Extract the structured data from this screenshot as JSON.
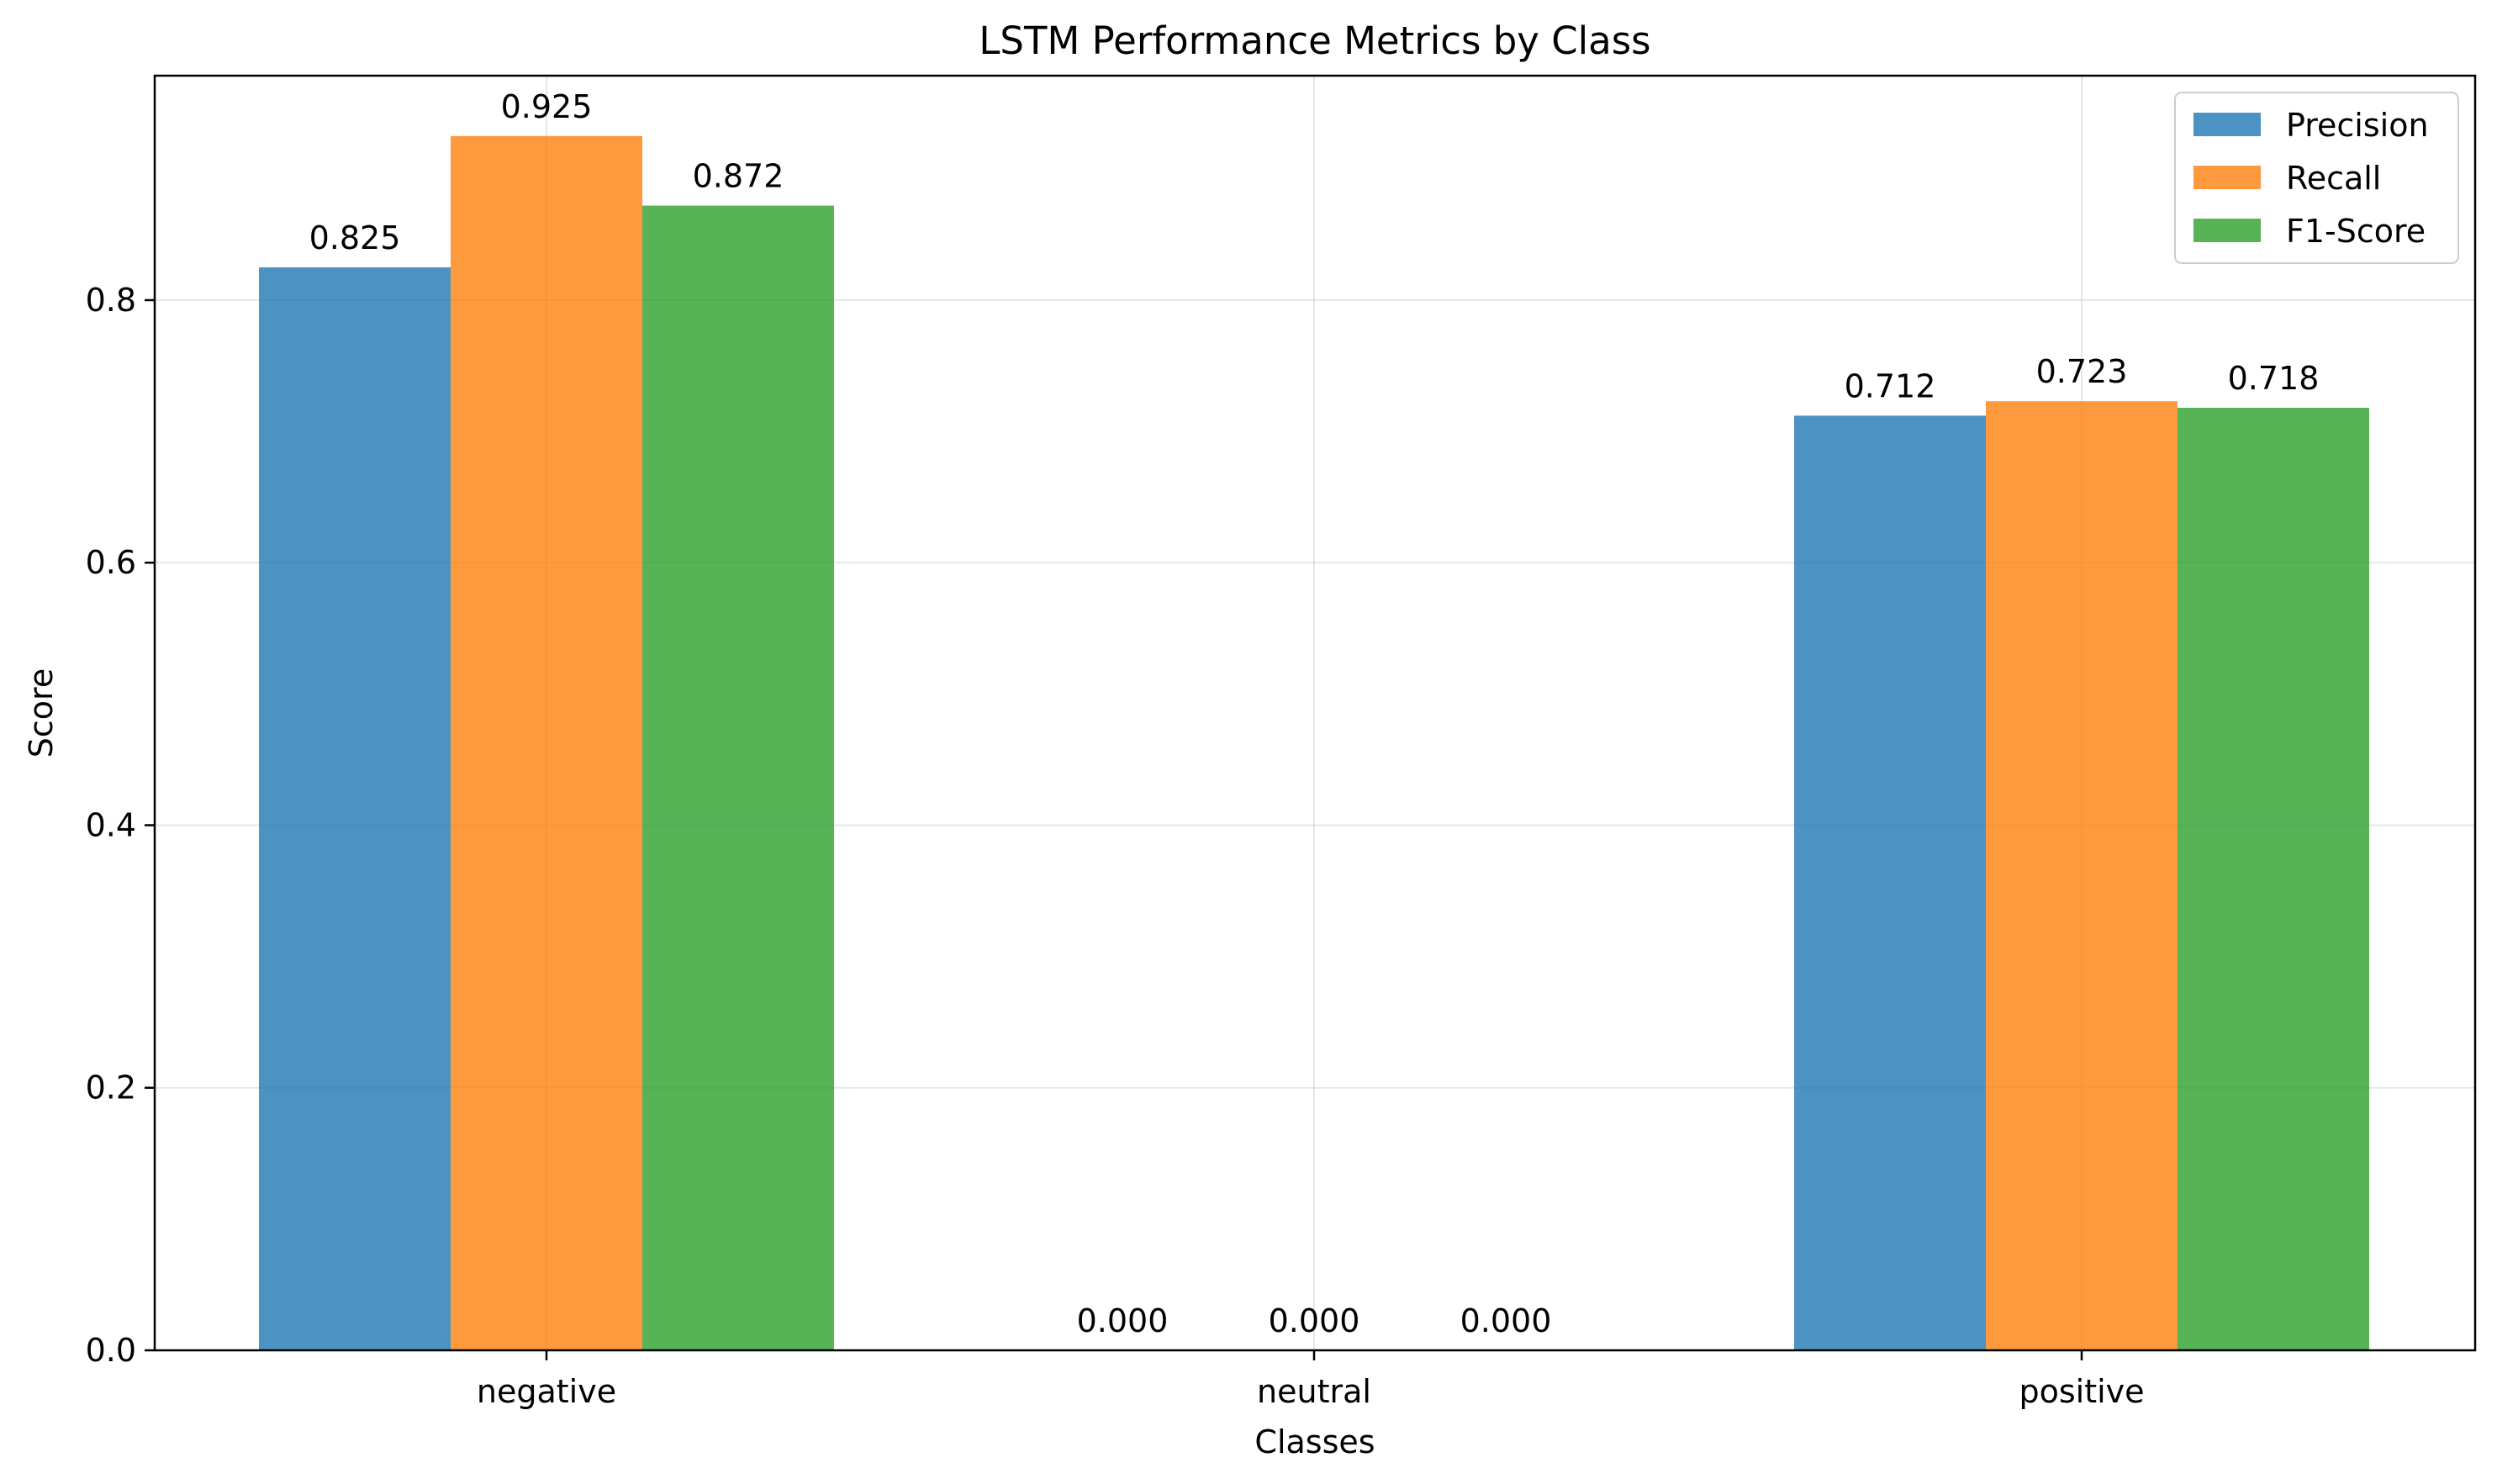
{
  "chart_data": {
    "type": "bar",
    "title": "LSTM Performance Metrics by Class",
    "xlabel": "Classes",
    "ylabel": "Score",
    "categories": [
      "negative",
      "neutral",
      "positive"
    ],
    "series": [
      {
        "name": "Precision",
        "color": "#1f77b4",
        "values": [
          0.825,
          0.0,
          0.712
        ],
        "labels": [
          "0.825",
          "0.000",
          "0.712"
        ]
      },
      {
        "name": "Recall",
        "color": "#ff7f0e",
        "values": [
          0.925,
          0.0,
          0.723
        ],
        "labels": [
          "0.925",
          "0.000",
          "0.723"
        ]
      },
      {
        "name": "F1-Score",
        "color": "#2ca02c",
        "values": [
          0.872,
          0.0,
          0.718
        ],
        "labels": [
          "0.872",
          "0.000",
          "0.718"
        ]
      }
    ],
    "ylim": [
      0,
      0.971
    ],
    "yticks": [
      0.0,
      0.2,
      0.4,
      0.6,
      0.8
    ],
    "ytick_labels": [
      "0.0",
      "0.2",
      "0.4",
      "0.6",
      "0.8"
    ],
    "bar_opacity": 0.8,
    "grid": true,
    "legend_position": "top-right"
  }
}
